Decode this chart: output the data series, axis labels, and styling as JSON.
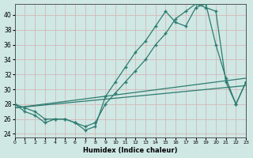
{
  "xlabel": "Humidex (Indice chaleur)",
  "ylabel": "",
  "background_color": "#cfe8e4",
  "grid_color": "#b0d0cc",
  "line_color": "#2e7b70",
  "xlim": [
    0,
    23
  ],
  "ylim": [
    23.5,
    41.5
  ],
  "yticks": [
    24,
    26,
    28,
    30,
    32,
    34,
    36,
    38,
    40
  ],
  "xticks": [
    0,
    1,
    2,
    3,
    4,
    5,
    6,
    7,
    8,
    9,
    10,
    11,
    12,
    13,
    14,
    15,
    16,
    17,
    18,
    19,
    20,
    21,
    22,
    23
  ],
  "series1_x": [
    0,
    1,
    2,
    3,
    4,
    5,
    6,
    7,
    8,
    9,
    10,
    11,
    12,
    13,
    14,
    15,
    16,
    17,
    18,
    19,
    20,
    21,
    22,
    23
  ],
  "series1_y": [
    28,
    27,
    26.5,
    25.5,
    26,
    26,
    25.5,
    24.5,
    25,
    29,
    31,
    33,
    35,
    36.5,
    38.5,
    40.5,
    39,
    38.5,
    41,
    41.5,
    36,
    31.5,
    28,
    31
  ],
  "series2_x": [
    0,
    1,
    2,
    3,
    4,
    5,
    6,
    7,
    8,
    9,
    10,
    11,
    12,
    13,
    14,
    15,
    16,
    17,
    18,
    19,
    20,
    21,
    22,
    23
  ],
  "series2_y": [
    28,
    27.5,
    27,
    26,
    26,
    26,
    25.5,
    25,
    25.5,
    28,
    29.5,
    31,
    32.5,
    34,
    36,
    37.5,
    39.5,
    40.5,
    41.5,
    41,
    40.5,
    31,
    28.0,
    31
  ],
  "line3_x": [
    0,
    23
  ],
  "line3_y": [
    27.5,
    31.5
  ],
  "line4_x": [
    0,
    23
  ],
  "line4_y": [
    27.5,
    30.5
  ]
}
